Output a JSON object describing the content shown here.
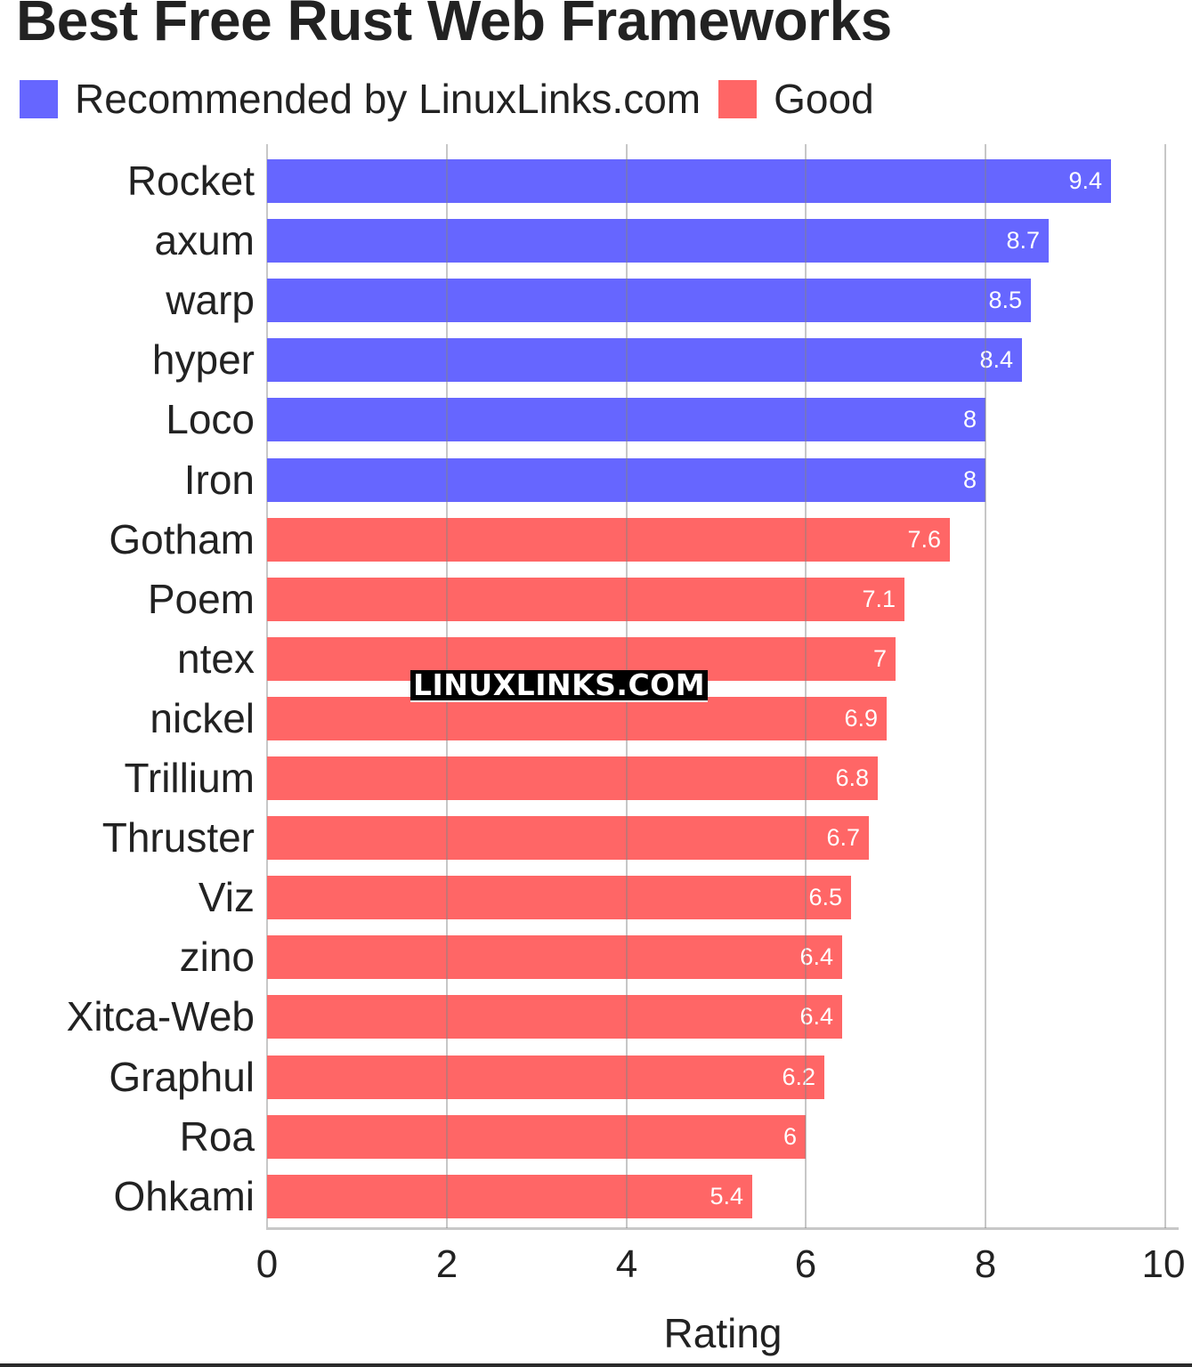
{
  "chart_data": {
    "type": "bar",
    "orientation": "horizontal",
    "title": "Best Free Rust Web Frameworks",
    "xlabel": "Rating",
    "ylabel": "",
    "xlim": [
      0,
      10
    ],
    "xticks": [
      "0",
      "2",
      "4",
      "6",
      "8",
      "10"
    ],
    "grid": true,
    "legend_position": "top-left",
    "legend": [
      {
        "label": "Recommended by LinuxLinks.com",
        "color": "#6666ff"
      },
      {
        "label": "Good",
        "color": "#ff6666"
      }
    ],
    "categories": [
      "Rocket",
      "axum",
      "warp",
      "hyper",
      "Loco",
      "Iron",
      "Gotham",
      "Poem",
      "ntex",
      "nickel",
      "Trillium",
      "Thruster",
      "Viz",
      "zino",
      "Xitca-Web",
      "Graphul",
      "Roa",
      "Ohkami"
    ],
    "values": [
      9.4,
      8.7,
      8.5,
      8.4,
      8,
      8,
      7.6,
      7.1,
      7,
      6.9,
      6.8,
      6.7,
      6.5,
      6.4,
      6.4,
      6.2,
      6,
      5.4
    ],
    "value_labels": [
      "9.4",
      "8.7",
      "8.5",
      "8.4",
      "8",
      "8",
      "7.6",
      "7.1",
      "7",
      "6.9",
      "6.8",
      "6.7",
      "6.5",
      "6.4",
      "6.4",
      "6.2",
      "6",
      "5.4"
    ],
    "groups": [
      "Recommended by LinuxLinks.com",
      "Recommended by LinuxLinks.com",
      "Recommended by LinuxLinks.com",
      "Recommended by LinuxLinks.com",
      "Recommended by LinuxLinks.com",
      "Recommended by LinuxLinks.com",
      "Good",
      "Good",
      "Good",
      "Good",
      "Good",
      "Good",
      "Good",
      "Good",
      "Good",
      "Good",
      "Good",
      "Good"
    ],
    "annotations": [
      "LINUXLINKS.COM"
    ]
  },
  "colors": {
    "recommended": "#6666ff",
    "good": "#ff6666"
  },
  "watermark": "LINUXLINKS.COM"
}
